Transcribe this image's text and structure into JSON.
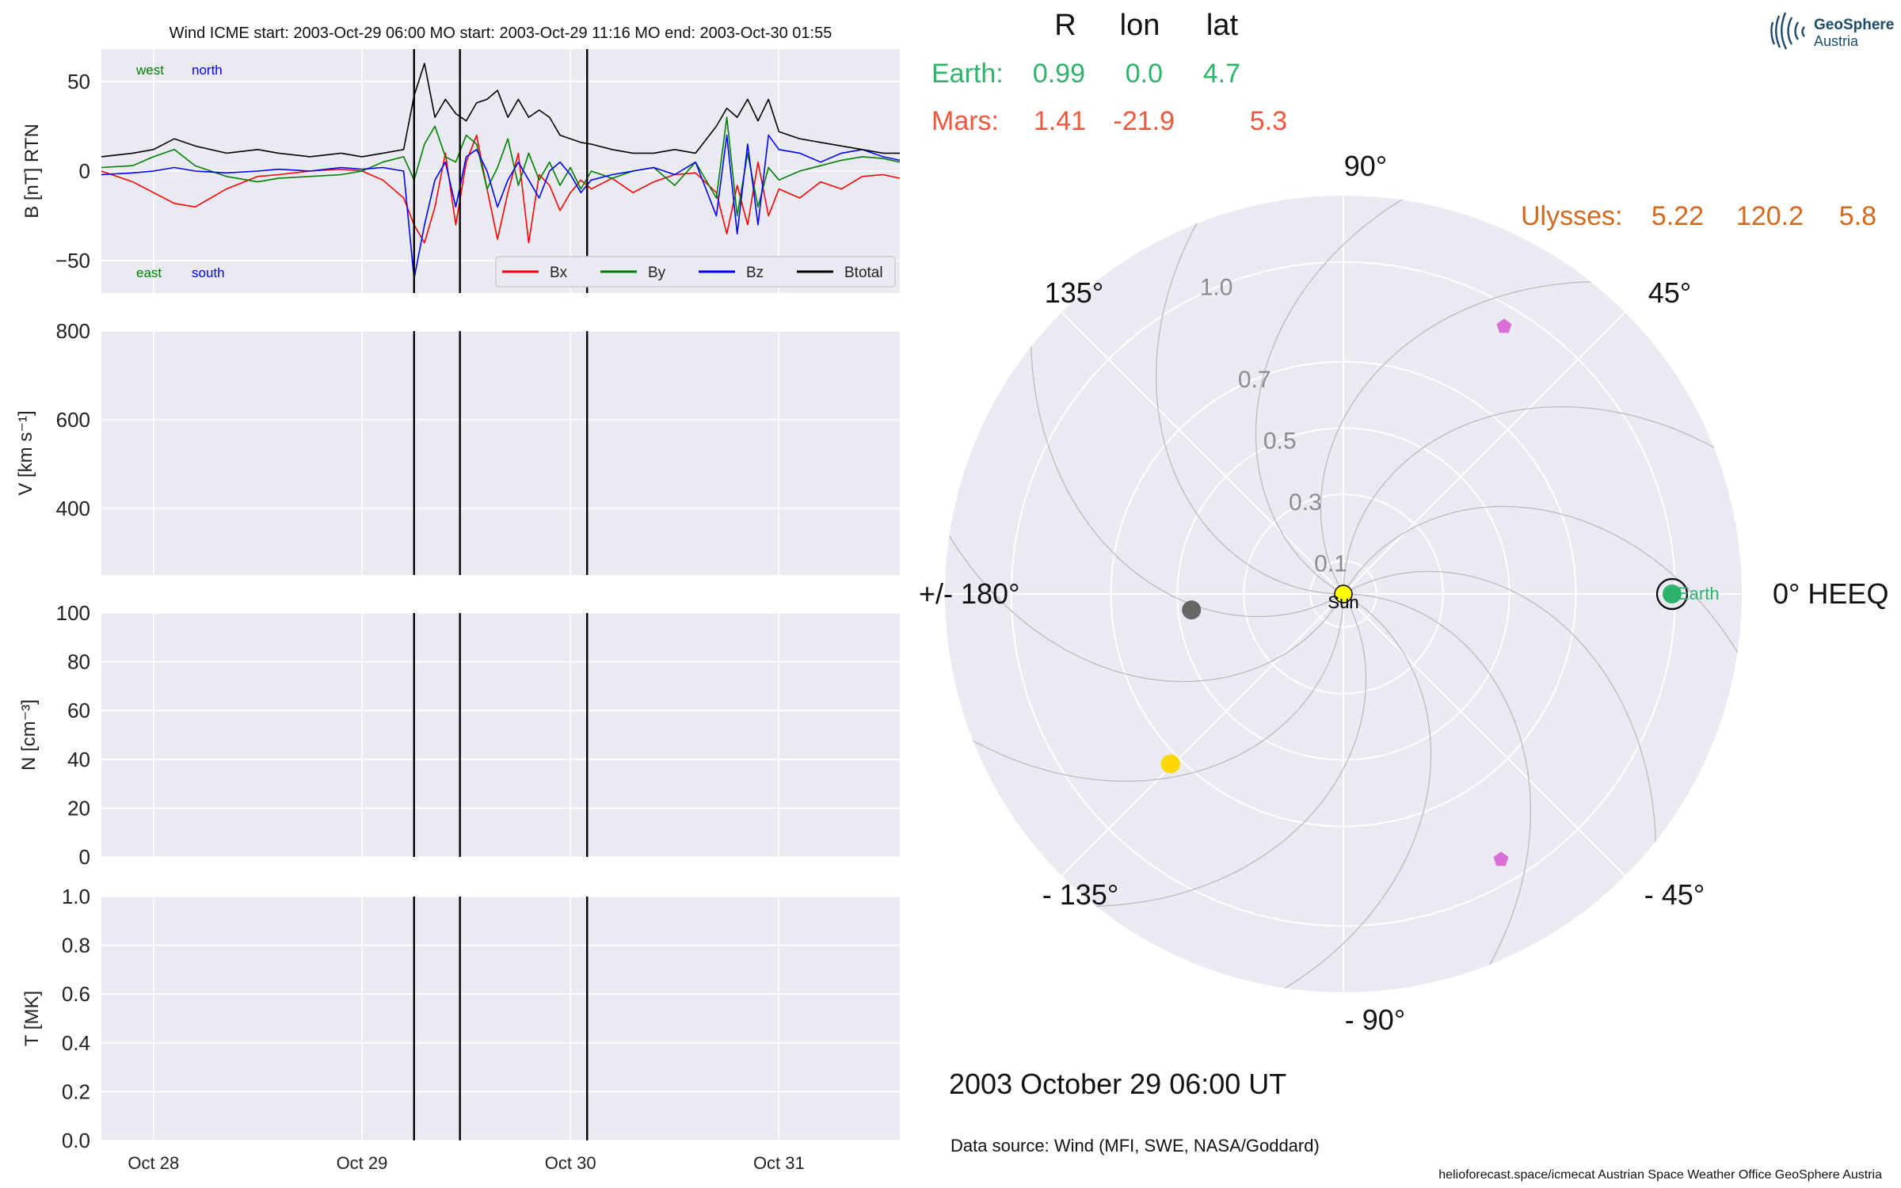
{
  "chart_data": [
    {
      "type": "line",
      "panel": "magnetic-field",
      "title": "Wind    ICME start: 2003-Oct-29 06:00   MO start: 2003-Oct-29 11:16   MO end: 2003-Oct-30 01:55",
      "ylabel": "B [nT] RTN",
      "ylim": [
        -68,
        68
      ],
      "yticks": [
        -50,
        0,
        50
      ],
      "ytick_labels": [
        "−50",
        "0",
        "50"
      ],
      "xlim_days": [
        27.75,
        31.58
      ],
      "xticks": [
        28,
        29,
        30,
        31
      ],
      "xtick_labels": [
        "Oct 28",
        "Oct 29",
        "Oct 30",
        "Oct 31"
      ],
      "corner_labels": {
        "west": "west",
        "north": "north",
        "east": "east",
        "south": "south"
      },
      "legend_position": "bottom-right",
      "series": [
        {
          "name": "Bx",
          "color": "#ff0000",
          "x": [
            27.75,
            27.9,
            28.0,
            28.1,
            28.2,
            28.35,
            28.5,
            28.6,
            28.75,
            28.9,
            29.0,
            29.1,
            29.2,
            29.25,
            29.3,
            29.35,
            29.4,
            29.45,
            29.5,
            29.55,
            29.6,
            29.65,
            29.7,
            29.75,
            29.8,
            29.85,
            29.9,
            29.95,
            30.0,
            30.05,
            30.1,
            30.2,
            30.3,
            30.4,
            30.5,
            30.6,
            30.7,
            30.75,
            30.8,
            30.85,
            30.9,
            30.95,
            31.0,
            31.1,
            31.2,
            31.3,
            31.4,
            31.5,
            31.58
          ],
          "y": [
            0,
            -6,
            -12,
            -18,
            -20,
            -10,
            -3,
            -2,
            0,
            1,
            0,
            -5,
            -15,
            -30,
            -40,
            -20,
            10,
            -30,
            5,
            20,
            -10,
            -38,
            -12,
            10,
            -40,
            -2,
            -8,
            -22,
            -12,
            -5,
            -10,
            -4,
            -12,
            -6,
            -2,
            -1,
            -12,
            -35,
            -8,
            -30,
            5,
            -25,
            -10,
            -15,
            -6,
            -10,
            -3,
            -2,
            -4
          ]
        },
        {
          "name": "By",
          "color": "#008000",
          "x": [
            27.75,
            27.9,
            28.0,
            28.1,
            28.2,
            28.35,
            28.5,
            28.6,
            28.75,
            28.9,
            29.0,
            29.1,
            29.2,
            29.25,
            29.3,
            29.35,
            29.4,
            29.45,
            29.5,
            29.55,
            29.6,
            29.65,
            29.7,
            29.75,
            29.8,
            29.85,
            29.9,
            29.95,
            30.0,
            30.05,
            30.1,
            30.2,
            30.3,
            30.4,
            30.5,
            30.6,
            30.7,
            30.75,
            30.8,
            30.85,
            30.9,
            30.95,
            31.0,
            31.1,
            31.2,
            31.3,
            31.4,
            31.5,
            31.58
          ],
          "y": [
            2,
            3,
            8,
            12,
            3,
            -3,
            -6,
            -4,
            -3,
            -2,
            0,
            5,
            8,
            -5,
            15,
            25,
            8,
            5,
            20,
            15,
            -10,
            2,
            18,
            -8,
            10,
            -5,
            5,
            -8,
            2,
            -10,
            0,
            -4,
            0,
            2,
            -8,
            5,
            -15,
            30,
            -25,
            10,
            -20,
            2,
            -5,
            0,
            3,
            6,
            8,
            7,
            5
          ]
        },
        {
          "name": "Bz",
          "color": "#0000ff",
          "x": [
            27.75,
            27.9,
            28.0,
            28.1,
            28.2,
            28.35,
            28.5,
            28.6,
            28.75,
            28.9,
            29.0,
            29.1,
            29.2,
            29.25,
            29.3,
            29.35,
            29.4,
            29.45,
            29.5,
            29.55,
            29.6,
            29.65,
            29.7,
            29.75,
            29.8,
            29.85,
            29.9,
            29.95,
            30.0,
            30.05,
            30.1,
            30.2,
            30.3,
            30.4,
            30.5,
            30.6,
            30.7,
            30.75,
            30.8,
            30.85,
            30.9,
            30.95,
            31.0,
            31.1,
            31.2,
            31.3,
            31.4,
            31.5,
            31.58
          ],
          "y": [
            -2,
            -1,
            0,
            2,
            0,
            -1,
            0,
            1,
            0,
            2,
            1,
            2,
            0,
            -60,
            -30,
            -5,
            5,
            -20,
            8,
            12,
            0,
            -20,
            -5,
            5,
            -5,
            -15,
            0,
            5,
            -2,
            -12,
            -5,
            -2,
            0,
            2,
            -2,
            5,
            -25,
            20,
            -35,
            15,
            -30,
            20,
            12,
            10,
            5,
            10,
            12,
            8,
            6
          ]
        },
        {
          "name": "Btotal",
          "color": "#000000",
          "x": [
            27.75,
            27.9,
            28.0,
            28.1,
            28.2,
            28.35,
            28.5,
            28.6,
            28.75,
            28.9,
            29.0,
            29.1,
            29.2,
            29.25,
            29.3,
            29.35,
            29.4,
            29.45,
            29.5,
            29.55,
            29.6,
            29.65,
            29.7,
            29.75,
            29.8,
            29.85,
            29.9,
            29.95,
            30.0,
            30.05,
            30.1,
            30.2,
            30.3,
            30.4,
            30.5,
            30.6,
            30.7,
            30.75,
            30.8,
            30.85,
            30.9,
            30.95,
            31.0,
            31.1,
            31.2,
            31.3,
            31.4,
            31.5,
            31.58
          ],
          "y": [
            8,
            10,
            12,
            18,
            14,
            10,
            12,
            10,
            8,
            10,
            8,
            10,
            12,
            42,
            60,
            30,
            40,
            32,
            28,
            38,
            40,
            45,
            30,
            40,
            30,
            34,
            30,
            20,
            18,
            16,
            15,
            12,
            10,
            10,
            12,
            10,
            25,
            35,
            30,
            40,
            28,
            40,
            22,
            18,
            16,
            14,
            12,
            10,
            10
          ]
        }
      ],
      "vertical_lines_days": [
        29.25,
        29.47,
        30.08
      ]
    },
    {
      "type": "line",
      "panel": "speed",
      "ylabel": "V [km s⁻¹]",
      "ylim": [
        250,
        800
      ],
      "yticks": [
        400,
        600,
        800
      ],
      "ytick_labels": [
        "400",
        "600",
        "800"
      ],
      "series": [],
      "vertical_lines_days": [
        29.25,
        29.47,
        30.08
      ]
    },
    {
      "type": "line",
      "panel": "density",
      "ylabel": "N [cm⁻³]",
      "ylim": [
        0,
        100
      ],
      "yticks": [
        0,
        20,
        40,
        60,
        80,
        100
      ],
      "ytick_labels": [
        "0",
        "20",
        "40",
        "60",
        "80",
        "100"
      ],
      "series": [],
      "vertical_lines_days": [
        29.25,
        29.47,
        30.08
      ]
    },
    {
      "type": "line",
      "panel": "temperature",
      "ylabel": "T [MK]",
      "ylim": [
        0,
        1.0
      ],
      "yticks": [
        0,
        0.2,
        0.4,
        0.6,
        0.8,
        1.0
      ],
      "ytick_labels": [
        "0.0",
        "0.2",
        "0.4",
        "0.6",
        "0.8",
        "1.0"
      ],
      "xticks": [
        28,
        29,
        30,
        31
      ],
      "xtick_labels": [
        "Oct 28",
        "Oct 29",
        "Oct 30",
        "Oct 31"
      ],
      "series": [],
      "vertical_lines_days": [
        29.25,
        29.47,
        30.08
      ]
    },
    {
      "type": "scatter",
      "panel": "polar-position-plot",
      "coordinate_system": "HEEQ",
      "angle_labels": [
        "0° HEEQ",
        "45°",
        "90°",
        "135°",
        "+/- 180°",
        "- 135°",
        "- 90°",
        "- 45°"
      ],
      "radial_ticks": [
        0.1,
        0.3,
        0.5,
        0.7,
        1.0
      ],
      "radial_tick_labels": [
        "0.1",
        "0.3",
        "0.5",
        "0.7",
        "1.0"
      ],
      "rlim": [
        0,
        1.2
      ],
      "table": {
        "headers": [
          "R",
          "lon",
          "lat"
        ],
        "rows": [
          {
            "name": "Earth:",
            "r": "0.99",
            "lon": "0.0",
            "lat": "4.7",
            "color": "#2eb36a"
          },
          {
            "name": "Mars:",
            "r": "1.41",
            "lon": "-21.9",
            "lat": "5.3",
            "color": "#f0573d"
          },
          {
            "name": "Ulysses:",
            "r": "5.22",
            "lon": "120.2",
            "lat": "5.8",
            "color": "#d2691e"
          }
        ]
      },
      "bodies": [
        {
          "label": "Sun",
          "r": 0.0,
          "lon": 0.0,
          "color": "#ffff00",
          "marker": "circle"
        },
        {
          "label": "Earth",
          "r": 0.99,
          "lon": 0.0,
          "color": "#2eb36a",
          "marker": "circle"
        },
        {
          "label": "",
          "r": 0.46,
          "lon": 186.0,
          "color": "#666666",
          "marker": "circle"
        },
        {
          "label": "",
          "r": 0.73,
          "lon": 224.5,
          "color": "#ffd700",
          "marker": "circle"
        },
        {
          "label": "",
          "r": 0.94,
          "lon": 59.0,
          "color": "#da70d6",
          "marker": "pentagon"
        },
        {
          "label": "",
          "r": 0.93,
          "lon": -59.3,
          "color": "#da70d6",
          "marker": "pentagon"
        }
      ],
      "spiral_lines": 12,
      "grid": true
    }
  ],
  "polar_footer": {
    "date": "2003 October 29  06:00 UT",
    "source": "Data source: Wind (MFI, SWE, NASA/Goddard)",
    "credits": "helioforecast.space/icmecat   Austrian Space Weather Office   GeoSphere Austria"
  },
  "logo": {
    "line1": "GeoSphere",
    "line2": "Austria",
    "color": "#1c4a6a"
  },
  "colors": {
    "axes_bg": "#eaeaf2",
    "grid": "#ffffff",
    "earth": "#2eb36a",
    "mars": "#f0573d",
    "ulysses": "#d2691e"
  }
}
